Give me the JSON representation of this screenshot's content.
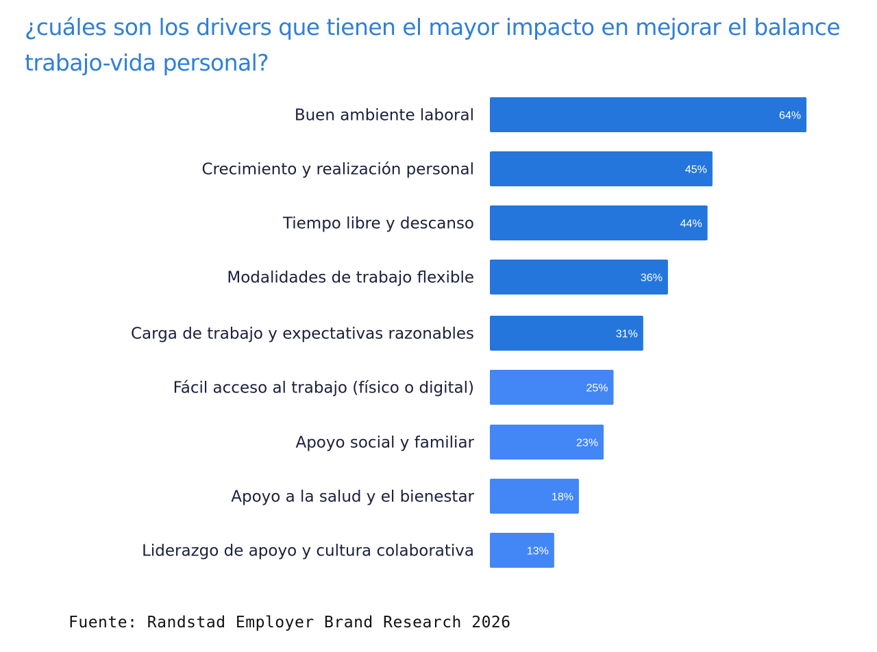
{
  "title": "¿cuáles son los drivers que tienen el mayor impacto en mejorar el balance trabajo-vida personal?",
  "source": "Fuente: Randstad Employer Brand Research 2026",
  "colors": {
    "title": "#2f7fd8",
    "bar_dark": "#2476dc",
    "bar_light": "#4287f5",
    "label": "#1b1f3b"
  },
  "chart_data": {
    "type": "bar",
    "orientation": "horizontal",
    "categories": [
      "Buen ambiente laboral",
      "Crecimiento y realización personal",
      "Tiempo libre y descanso",
      "Modalidades de trabajo flexible",
      "Carga de trabajo y expectativas razonables",
      "Fácil acceso al trabajo (físico o digital)",
      "Apoyo social y familiar",
      "Apoyo a la salud y el bienestar",
      "Liderazgo de apoyo y cultura colaborativa"
    ],
    "values": [
      64,
      45,
      44,
      36,
      31,
      25,
      23,
      18,
      13
    ],
    "value_labels": [
      "64%",
      "45%",
      "44%",
      "36%",
      "31%",
      "25%",
      "23%",
      "18%",
      "13%"
    ],
    "bar_color_groups": [
      "dark",
      "dark",
      "dark",
      "dark",
      "dark",
      "light",
      "light",
      "light",
      "light"
    ],
    "xlim": [
      0,
      100
    ],
    "grid": false,
    "legend": "none",
    "xlabel": "",
    "ylabel": ""
  }
}
